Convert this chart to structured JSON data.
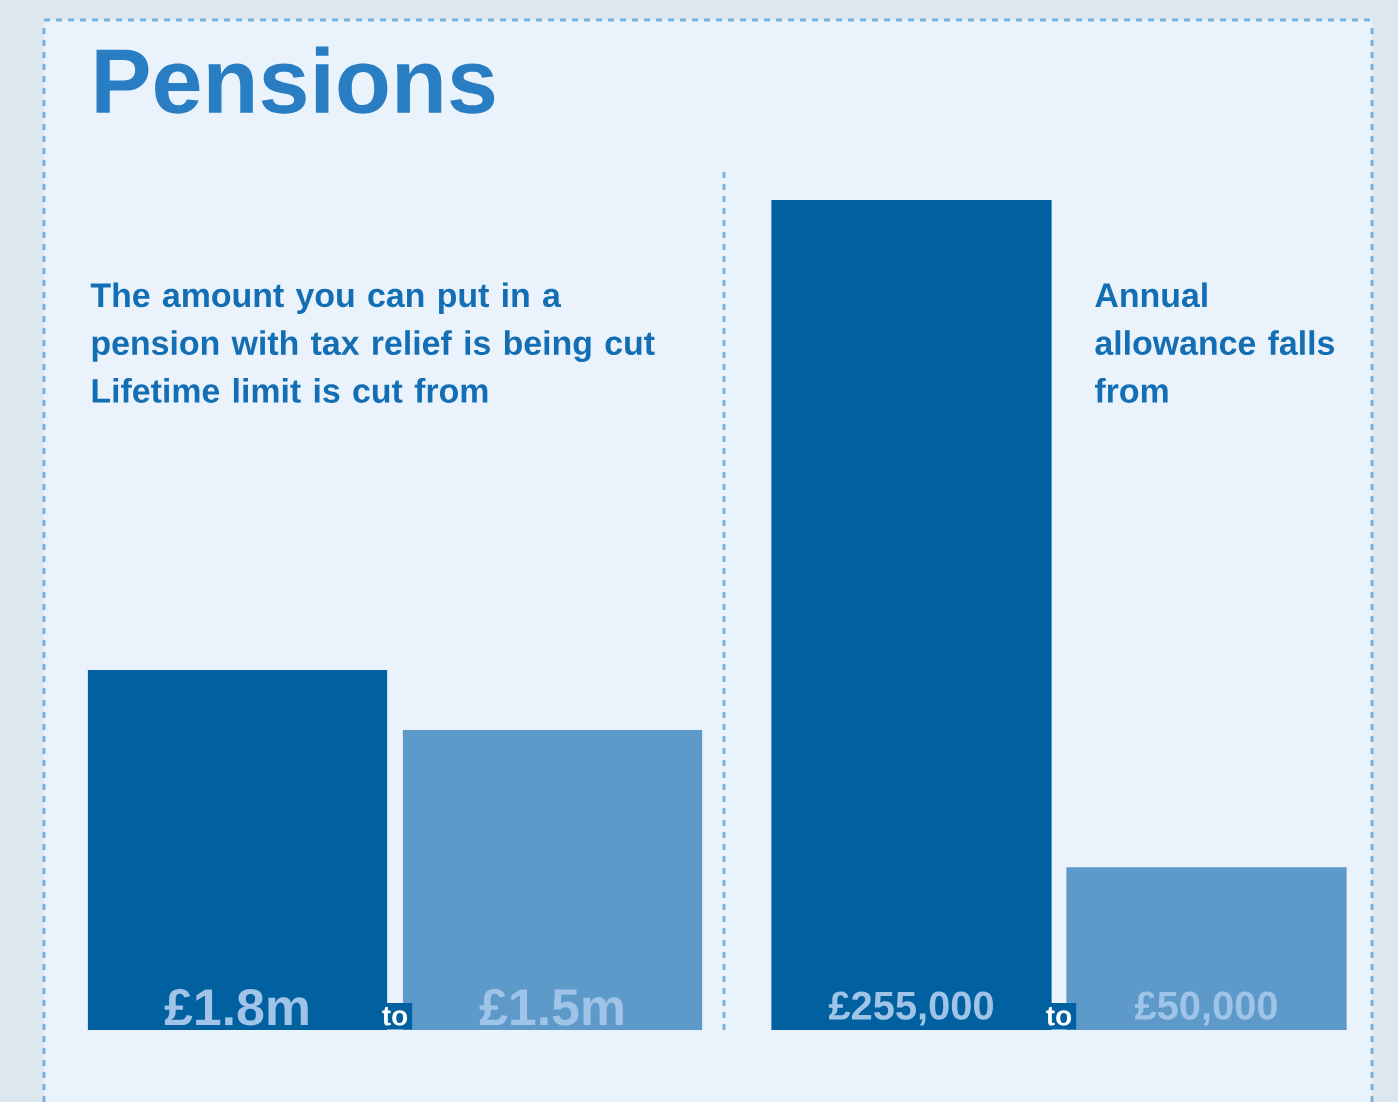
{
  "chart_data": [
    {
      "type": "bar",
      "title": "Pensions",
      "categories": [
        null,
        null
      ],
      "values": [
        1.8,
        1.5
      ],
      "colors": [
        "#01609f",
        "#5d9ac9"
      ],
      "value_labels": [
        "£1.8m",
        "£1.5m"
      ],
      "annotations": [
        "The amount you can put in a pension with tax relief is being cut Lifetime limit is cut from",
        "to"
      ]
    },
    {
      "type": "bar",
      "categories": [
        null,
        null
      ],
      "values": [
        255000,
        50000
      ],
      "colors": [
        "#01609f",
        "#5d9ac9"
      ],
      "value_labels": [
        "£255,000",
        "£50,000"
      ],
      "annotations": [
        "Annual allowance falls from",
        "to"
      ]
    }
  ]
}
